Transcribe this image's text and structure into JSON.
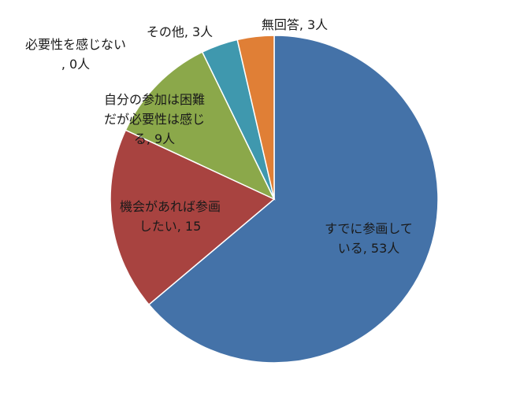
{
  "chart_data": {
    "type": "pie",
    "start_angle_deg": 0,
    "direction": "clockwise",
    "slices": [
      {
        "label": "すでに参画している, 53人",
        "lines": [
          "すでに参画して",
          "いる, 53人"
        ],
        "value": 53,
        "color": "#4472A8"
      },
      {
        "label": "機会があれば参画したい, 15",
        "lines": [
          "機会があれば参画",
          "したい, 15"
        ],
        "value": 15,
        "color": "#A84340"
      },
      {
        "label": "自分の参加は困難だが必要性は感じる, 9人",
        "lines": [
          "自分の参加は困難",
          "だが必要性は感じ",
          "る, 9人"
        ],
        "value": 9,
        "color": "#8BA84A"
      },
      {
        "label": "必要性を感じない, 0人",
        "lines": [
          "必要性を感じない",
          ", 0人"
        ],
        "value": 0,
        "color": "#6B4E94"
      },
      {
        "label": "その他, 3人",
        "lines": [
          "その他, 3人"
        ],
        "value": 3,
        "color": "#3F98AE"
      },
      {
        "label": "無回答, 3人",
        "lines": [
          "無回答, 3人"
        ],
        "value": 3,
        "color": "#E07F36"
      }
    ]
  }
}
